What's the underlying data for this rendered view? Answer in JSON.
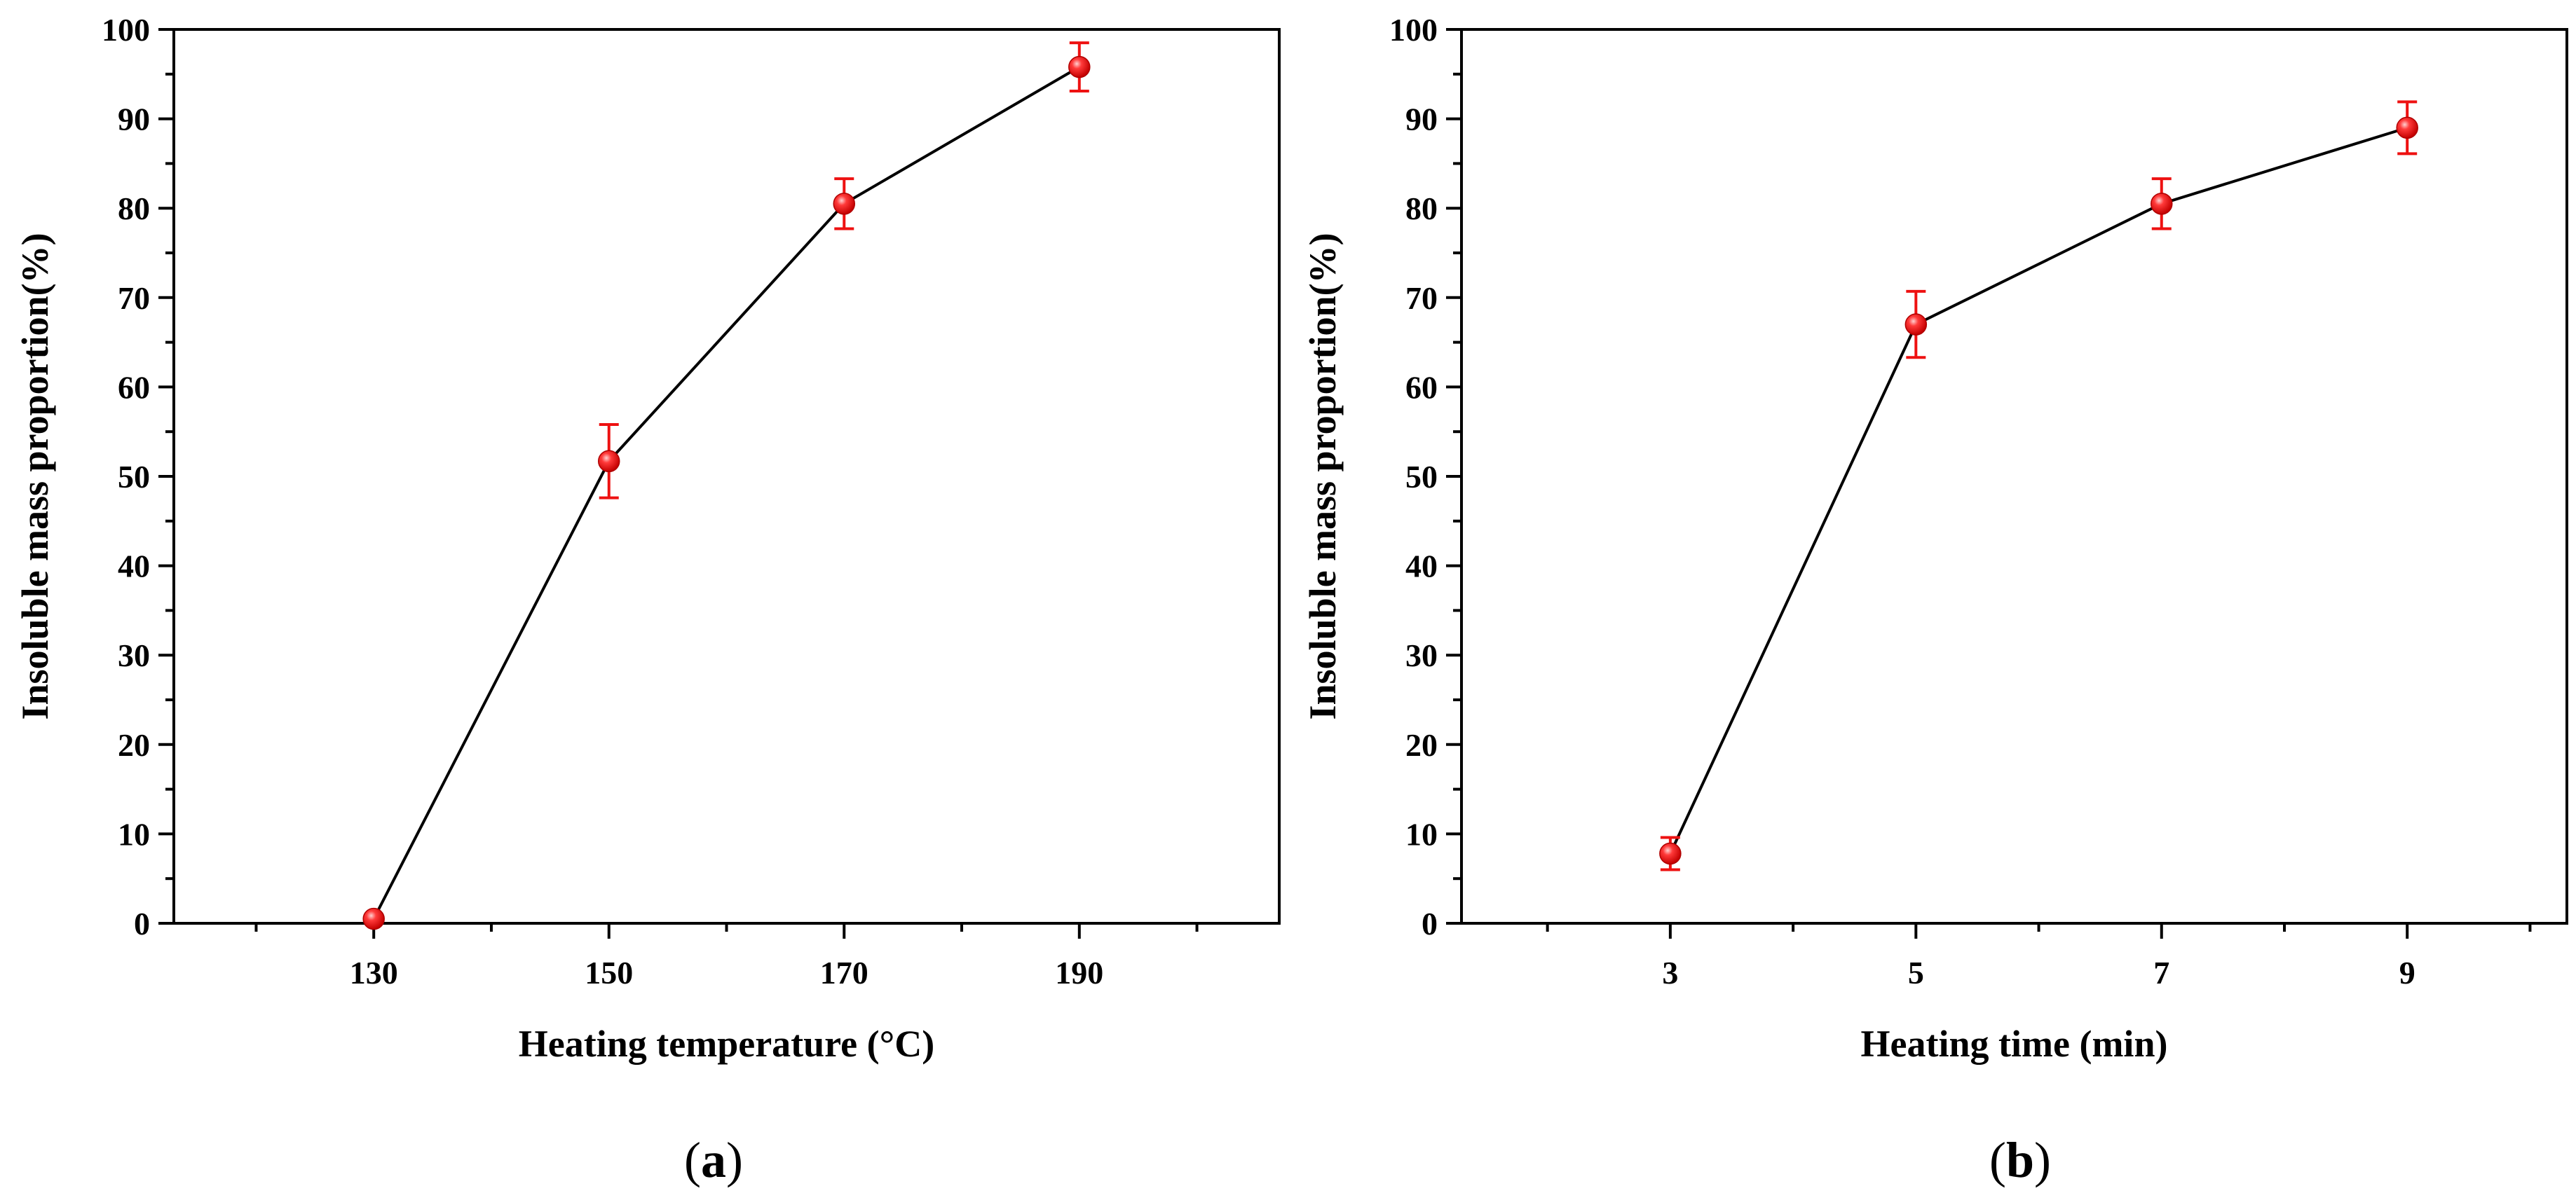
{
  "chart_data": [
    {
      "type": "line",
      "panel_label_open": "(",
      "panel_label_letter": "a",
      "panel_label_close": ")",
      "xlabel": "Heating temperature (°C)",
      "ylabel": "Insoluble mass proportion(%)",
      "xlim": [
        113,
        207
      ],
      "ylim": [
        0,
        100
      ],
      "xticks": [
        130,
        150,
        170,
        190
      ],
      "xtick_labels": [
        "130",
        "150",
        "170",
        "190"
      ],
      "yticks": [
        0,
        10,
        20,
        30,
        40,
        50,
        60,
        70,
        80,
        90,
        100
      ],
      "ytick_labels": [
        "0",
        "10",
        "20",
        "30",
        "40",
        "50",
        "60",
        "70",
        "80",
        "90",
        "100"
      ],
      "series": [
        {
          "name": "Insoluble mass proportion",
          "x": [
            130,
            150,
            170,
            190
          ],
          "y": [
            0.5,
            51.7,
            80.5,
            95.8
          ],
          "error": [
            0,
            4.1,
            2.8,
            2.7
          ],
          "line_color": "#000000",
          "marker_color": "#ee1111"
        }
      ]
    },
    {
      "type": "line",
      "panel_label_open": "(",
      "panel_label_letter": "b",
      "panel_label_close": ")",
      "xlabel": "Heating time (min)",
      "ylabel": "Insoluble mass proportion(%)",
      "xlim": [
        1.3,
        10.3
      ],
      "ylim": [
        0,
        100
      ],
      "xticks": [
        3,
        5,
        7,
        9
      ],
      "xtick_labels": [
        "3",
        "5",
        "7",
        "9"
      ],
      "yticks": [
        0,
        10,
        20,
        30,
        40,
        50,
        60,
        70,
        80,
        90,
        100
      ],
      "ytick_labels": [
        "0",
        "10",
        "20",
        "30",
        "40",
        "50",
        "60",
        "70",
        "80",
        "90",
        "100"
      ],
      "series": [
        {
          "name": "Insoluble mass proportion",
          "x": [
            3,
            5,
            7,
            9
          ],
          "y": [
            7.8,
            67.0,
            80.5,
            89.0
          ],
          "error": [
            1.8,
            3.7,
            2.8,
            2.9
          ],
          "line_color": "#000000",
          "marker_color": "#ee1111"
        }
      ]
    }
  ]
}
